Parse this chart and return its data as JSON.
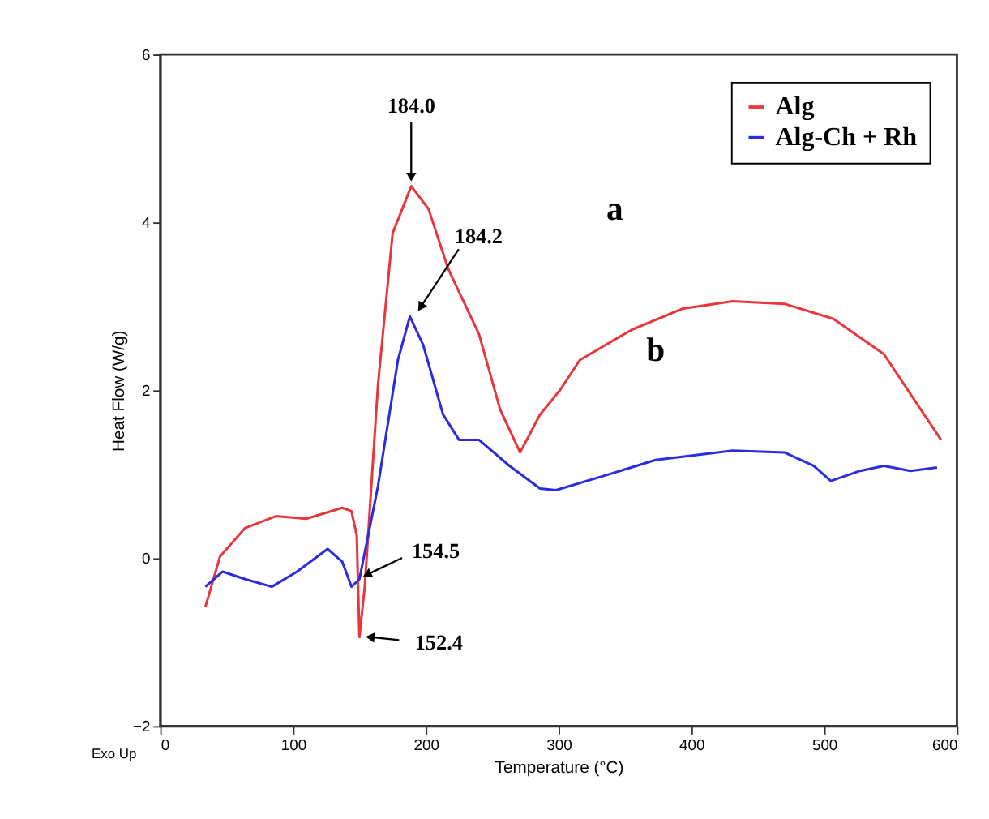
{
  "chart_data": {
    "type": "line",
    "xlabel": "Temperature (°C)",
    "ylabel": "Heat Flow (W/g)",
    "xlim": [
      0,
      600
    ],
    "xticks": [
      0,
      100,
      200,
      300,
      400,
      500,
      600
    ],
    "ylim": [
      -2,
      6
    ],
    "yticks": [
      -2,
      0,
      2,
      4,
      6
    ],
    "grid": false,
    "legend": "top right",
    "marker": "none",
    "line_style": "solid",
    "series": [
      {
        "name": "Alg",
        "color": "#e8363a",
        "x": [
          34,
          45,
          64,
          87,
          110,
          137,
          144,
          148,
          150,
          154,
          164,
          175,
          189,
          202,
          217,
          240,
          256,
          271,
          286,
          301,
          316,
          355,
          393,
          431,
          470,
          507,
          545,
          588
        ],
        "values": [
          -0.58,
          0.02,
          0.36,
          0.5,
          0.47,
          0.6,
          0.56,
          0.27,
          -0.94,
          -0.34,
          2.07,
          3.87,
          4.43,
          4.16,
          3.44,
          2.67,
          1.77,
          1.26,
          1.71,
          2.0,
          2.36,
          2.72,
          2.97,
          3.06,
          3.03,
          2.85,
          2.43,
          1.41
        ]
      },
      {
        "name": "Alg-Ch + Rh",
        "color": "#2b2be0",
        "x": [
          34,
          47,
          64,
          84,
          103,
          126,
          137,
          144,
          150,
          164,
          179,
          188,
          198,
          213,
          225,
          240,
          263,
          286,
          298,
          336,
          373,
          431,
          470,
          492,
          505,
          527,
          545,
          565,
          585
        ],
        "values": [
          -0.34,
          -0.16,
          -0.25,
          -0.34,
          -0.16,
          0.11,
          -0.04,
          -0.34,
          -0.25,
          0.86,
          2.36,
          2.88,
          2.54,
          1.71,
          1.41,
          1.41,
          1.1,
          0.83,
          0.81,
          0.99,
          1.17,
          1.28,
          1.26,
          1.1,
          0.92,
          1.04,
          1.1,
          1.04,
          1.08
        ]
      }
    ],
    "annotations": [
      {
        "text": "184.0",
        "x": 189,
        "y": 4.43
      },
      {
        "text": "184.2",
        "x": 188,
        "y": 2.88
      },
      {
        "text": "154.5",
        "x": 150,
        "y": -0.25
      },
      {
        "text": "152.4",
        "x": 150,
        "y": -0.94
      },
      "a",
      "b",
      "Exo Up"
    ]
  }
}
